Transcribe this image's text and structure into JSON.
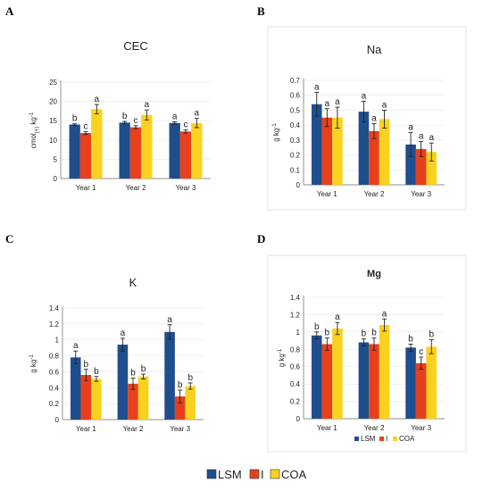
{
  "panels_letters": [
    "A",
    "B",
    "C",
    "D"
  ],
  "colors": {
    "LSM": "#1f4e8c",
    "I": "#e8401c",
    "COA": "#f9d21f"
  },
  "chart_data": [
    {
      "letter": "A",
      "type": "bar",
      "title": "CEC",
      "ylabel": "cmol(+) kg-1",
      "ylabel_main": "cmol",
      "ylabel_sub": "(+)",
      "ylabel_tail": " kg",
      "ylabel_sup": "-1",
      "categories": [
        "Year 1",
        "Year 2",
        "Year 3"
      ],
      "ylim": [
        0,
        25
      ],
      "yticks": [
        0,
        5,
        10,
        15,
        20,
        25
      ],
      "ytick_labels": [
        "0",
        "5",
        "10",
        "15",
        "20",
        "25"
      ],
      "grid": true,
      "series": [
        {
          "name": "LSM",
          "values": [
            14.0,
            14.5,
            14.4
          ],
          "errors": [
            0.2,
            0.3,
            0.3
          ],
          "letters": [
            "b",
            "b",
            "a"
          ]
        },
        {
          "name": "I",
          "values": [
            11.8,
            13.3,
            12.2
          ],
          "errors": [
            0.4,
            0.4,
            0.4
          ],
          "letters": [
            "c",
            "c",
            "c"
          ]
        },
        {
          "name": "COA",
          "values": [
            18.0,
            16.5,
            14.4
          ],
          "errors": [
            1.2,
            1.3,
            1.2
          ],
          "letters": [
            "a",
            "a",
            "a"
          ]
        }
      ]
    },
    {
      "letter": "B",
      "type": "bar",
      "title": "Na",
      "ylabel": "g kg-1",
      "ylabel_main": "g kg",
      "ylabel_sub": "",
      "ylabel_tail": "",
      "ylabel_sup": "-1",
      "categories": [
        "Year 1",
        "Year 2",
        "Year 3"
      ],
      "ylim": [
        0,
        0.7
      ],
      "yticks": [
        0,
        0.1,
        0.2,
        0.3,
        0.4,
        0.5,
        0.6,
        0.7
      ],
      "ytick_labels": [
        "0",
        "0.1",
        "0.2",
        "0.3",
        "0.4",
        "0.5",
        "0.6",
        "0.7"
      ],
      "grid": true,
      "series": [
        {
          "name": "LSM",
          "values": [
            0.54,
            0.49,
            0.27
          ],
          "errors": [
            0.08,
            0.07,
            0.08
          ],
          "letters": [
            "a",
            "a",
            "a"
          ]
        },
        {
          "name": "I",
          "values": [
            0.45,
            0.36,
            0.24
          ],
          "errors": [
            0.06,
            0.05,
            0.05
          ],
          "letters": [
            "a",
            "a",
            "a"
          ]
        },
        {
          "name": "COA",
          "values": [
            0.45,
            0.44,
            0.22
          ],
          "errors": [
            0.07,
            0.06,
            0.06
          ],
          "letters": [
            "a",
            "a",
            "a"
          ]
        }
      ]
    },
    {
      "letter": "C",
      "type": "bar",
      "title": "K",
      "ylabel": "g kg-1",
      "ylabel_main": "g kg",
      "ylabel_sub": "",
      "ylabel_tail": "",
      "ylabel_sup": "-1",
      "categories": [
        "Year 1",
        "Year 2",
        "Year 3"
      ],
      "ylim": [
        0,
        1.4
      ],
      "yticks": [
        0,
        0.2,
        0.4,
        0.6,
        0.8,
        1.0,
        1.2,
        1.4
      ],
      "ytick_labels": [
        "0",
        "0.2",
        "0.4",
        "0.6",
        "0.8",
        "1",
        "1.2",
        "1.4"
      ],
      "grid": true,
      "series": [
        {
          "name": "LSM",
          "values": [
            0.78,
            0.94,
            1.1
          ],
          "errors": [
            0.08,
            0.08,
            0.09
          ],
          "letters": [
            "a",
            "a",
            "a"
          ]
        },
        {
          "name": "I",
          "values": [
            0.56,
            0.45,
            0.29
          ],
          "errors": [
            0.07,
            0.07,
            0.08
          ],
          "letters": [
            "b",
            "b",
            "b"
          ]
        },
        {
          "name": "COA",
          "values": [
            0.51,
            0.54,
            0.42
          ],
          "errors": [
            0.03,
            0.03,
            0.04
          ],
          "letters": [
            "b",
            "b",
            "b"
          ]
        }
      ]
    },
    {
      "letter": "D",
      "type": "bar",
      "title": "Mg",
      "ylabel": "g kg-1",
      "ylabel_main": "g kg",
      "ylabel_sub": "",
      "ylabel_tail": "",
      "ylabel_sup": "-1",
      "categories": [
        "Year 1",
        "Year 2",
        "Year 3"
      ],
      "ylim": [
        0,
        1.4
      ],
      "yticks": [
        0,
        0.2,
        0.4,
        0.6,
        0.8,
        1.0,
        1.2,
        1.4
      ],
      "ytick_labels": [
        "0",
        "0.2",
        "0.4",
        "0.6",
        "0.8",
        "1",
        "1.2",
        "1.4"
      ],
      "grid": true,
      "series": [
        {
          "name": "LSM",
          "values": [
            0.96,
            0.88,
            0.82
          ],
          "errors": [
            0.04,
            0.04,
            0.04
          ],
          "letters": [
            "b",
            "b",
            "b"
          ]
        },
        {
          "name": "I",
          "values": [
            0.86,
            0.86,
            0.64
          ],
          "errors": [
            0.07,
            0.07,
            0.07
          ],
          "letters": [
            "b",
            "b",
            "c"
          ]
        },
        {
          "name": "COA",
          "values": [
            1.04,
            1.08,
            0.83
          ],
          "errors": [
            0.07,
            0.07,
            0.08
          ],
          "letters": [
            "a",
            "a",
            "b"
          ]
        }
      ],
      "legend_labels": [
        "LSM",
        "I",
        "COA"
      ],
      "legend_position": "bottom"
    }
  ],
  "legend": {
    "labels": [
      "LSM",
      "I",
      "COA"
    ],
    "position": "bottom"
  }
}
